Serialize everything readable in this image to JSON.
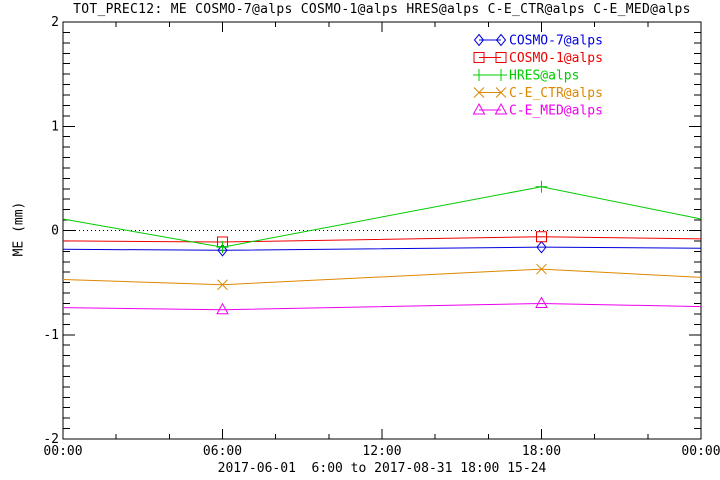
{
  "title": "TOT_PREC12: ME COSMO-7@alps COSMO-1@alps HRES@alps C-E_CTR@alps C-E_MED@alps",
  "footer": "2017-06-01  6:00 to 2017-08-31 18:00 15-24",
  "colors": {
    "axis": "#000000",
    "background": "#ffffff",
    "zero_line": "#000000"
  },
  "chart_data": {
    "type": "line",
    "title": "TOT_PREC12: ME COSMO-7@alps COSMO-1@alps HRES@alps C-E_CTR@alps C-E_MED@alps",
    "xlabel": "",
    "ylabel": "ME (mm)",
    "xlim": [
      0,
      24
    ],
    "ylim": [
      -2,
      2
    ],
    "grid": false,
    "zero_line": true,
    "legend_position": "top-right-inside",
    "x_hours": [
      0,
      6,
      18,
      24
    ],
    "marker_hours": [
      6,
      18
    ],
    "x_minor_step_hours": 2,
    "x_major_every_hours": 6,
    "y_minor_step": 0.1,
    "x_ticks": [
      {
        "h": 0,
        "label": "00:00"
      },
      {
        "h": 6,
        "label": "06:00"
      },
      {
        "h": 12,
        "label": "12:00"
      },
      {
        "h": 18,
        "label": "18:00"
      },
      {
        "h": 24,
        "label": "00:00"
      }
    ],
    "y_ticks": [
      {
        "v": -2,
        "label": "-2"
      },
      {
        "v": -1,
        "label": "-1"
      },
      {
        "v": 0,
        "label": "0"
      },
      {
        "v": 1,
        "label": "1"
      },
      {
        "v": 2,
        "label": "2"
      }
    ],
    "series": [
      {
        "name": "COSMO-7@alps",
        "color": "#0000dd",
        "marker": "diamond",
        "values": [
          -0.18,
          -0.19,
          -0.16,
          -0.17
        ]
      },
      {
        "name": "COSMO-1@alps",
        "color": "#ee0000",
        "marker": "square",
        "values": [
          -0.1,
          -0.11,
          -0.06,
          -0.08
        ]
      },
      {
        "name": "HRES@alps",
        "color": "#00cc00",
        "marker": "plus",
        "values": [
          0.11,
          -0.16,
          0.42,
          0.11
        ]
      },
      {
        "name": "C-E_CTR@alps",
        "color": "#dd8800",
        "marker": "x",
        "values": [
          -0.47,
          -0.52,
          -0.37,
          -0.45
        ]
      },
      {
        "name": "C-E_MED@alps",
        "color": "#ee00ee",
        "marker": "triangle",
        "values": [
          -0.74,
          -0.76,
          -0.7,
          -0.73
        ]
      }
    ]
  }
}
